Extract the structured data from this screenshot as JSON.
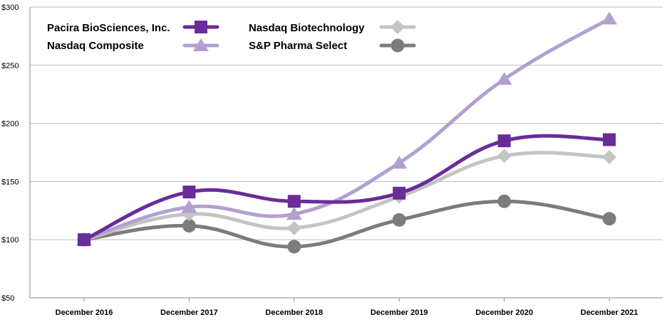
{
  "chart_data": {
    "type": "line",
    "title": "",
    "xlabel": "",
    "ylabel": "",
    "categories": [
      "December 2016",
      "December 2017",
      "December 2018",
      "December 2019",
      "December 2020",
      "December 2021"
    ],
    "y_tick_labels": [
      "$50",
      "$100",
      "$150",
      "$200",
      "$250",
      "$300"
    ],
    "y_ticks": [
      50,
      100,
      150,
      200,
      250,
      300
    ],
    "ylim": [
      50,
      300
    ],
    "grid": "horizontal",
    "legend_position": "top-left",
    "series": [
      {
        "name": "Pacira BioSciences, Inc.",
        "values": [
          100,
          141,
          133,
          140,
          185,
          186
        ],
        "color": "#6a2c98",
        "marker": "square"
      },
      {
        "name": "Nasdaq Composite",
        "values": [
          100,
          128,
          122,
          166,
          238,
          290
        ],
        "color": "#b1a0d0",
        "marker": "triangle"
      },
      {
        "name": "Nasdaq Biotechnology",
        "values": [
          100,
          122,
          110,
          137,
          172,
          171
        ],
        "color": "#c4c4c4",
        "marker": "diamond"
      },
      {
        "name": "S&P Pharma Select",
        "values": [
          100,
          112,
          94,
          117,
          133,
          118
        ],
        "color": "#7c7c7c",
        "marker": "circle"
      }
    ]
  }
}
